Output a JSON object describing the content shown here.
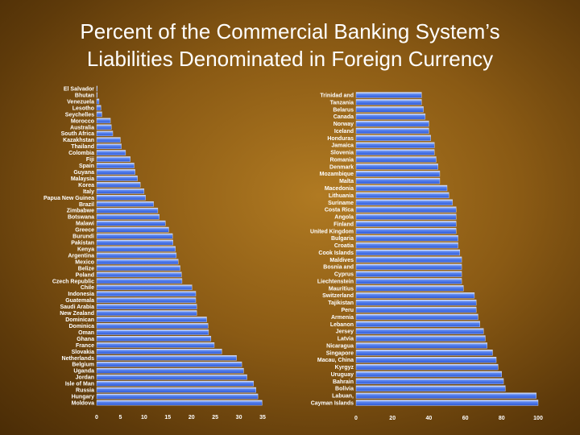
{
  "slide": {
    "title_line1": "Percent of the Commercial Banking System’s",
    "title_line2": "Liabilities Denominated in Foreign Currency"
  },
  "colors": {
    "bar_fill": "#3f6ee8",
    "bar_edge": "#d9e4ff",
    "text": "#ffffff"
  },
  "chart_data": [
    {
      "type": "bar",
      "orientation": "horizontal",
      "title": "",
      "xlabel": "",
      "ylabel": "",
      "xlim": [
        0,
        35
      ],
      "xticks": [
        0,
        5,
        10,
        15,
        20,
        25,
        30,
        35
      ],
      "grid": false,
      "categories": [
        "El Salvador",
        "Bhutan",
        "Venezuela",
        "Lesotho",
        "Seychelles",
        "Morocco",
        "Australia",
        "South Africa",
        "Kazakhstan",
        "Thailand",
        "Colombia",
        "Fiji",
        "Spain",
        "Guyana",
        "Malaysia",
        "Korea",
        "Italy",
        "Papua New Guinea",
        "Brazil",
        "Zimbabwe",
        "Botswana",
        "Malawi",
        "Greece",
        "Burundi",
        "Pakistan",
        "Kenya",
        "Argentina",
        "Mexico",
        "Belize",
        "Poland",
        "Czech Republic",
        "Chile",
        "Indonesia",
        "Guatemala",
        "Saudi Arabia",
        "New Zealand",
        "Dominican",
        "Dominica",
        "Oman",
        "Ghana",
        "France",
        "Slovakia",
        "Netherlands",
        "Belgium",
        "Uganda",
        "Jordan",
        "Isle of Man",
        "Russia",
        "Hungary",
        "Moldova"
      ],
      "values": [
        0,
        0,
        0.5,
        0.9,
        1.1,
        2.9,
        3.1,
        3.4,
        5.0,
        5.2,
        6.1,
        7.1,
        7.9,
        8.1,
        8.6,
        9.2,
        10.0,
        10.3,
        12.0,
        12.9,
        13.2,
        14.5,
        15.2,
        16.0,
        16.1,
        16.6,
        16.8,
        17.2,
        17.6,
        17.9,
        18.0,
        20.1,
        20.9,
        20.9,
        21.1,
        21.1,
        23.2,
        23.5,
        23.6,
        24.1,
        24.8,
        26.4,
        29.5,
        30.6,
        31.0,
        31.7,
        33.1,
        33.6,
        34.0,
        34.9
      ]
    },
    {
      "type": "bar",
      "orientation": "horizontal",
      "title": "",
      "xlabel": "",
      "ylabel": "",
      "xlim": [
        0,
        100
      ],
      "xticks": [
        0,
        20,
        40,
        60,
        80,
        100
      ],
      "grid": false,
      "categories": [
        "Trinidad and",
        "Tanzania",
        "Belarus",
        "Canada",
        "Norway",
        "Iceland",
        "Honduras",
        "Jamaica",
        "Slovenia",
        "Romania",
        "Denmark",
        "Mozambique",
        "Malta",
        "Macedonia",
        "Lithuania",
        "Suriname",
        "Costa Rica",
        "Angola",
        "Finland",
        "United Kingdom",
        "Bulgaria",
        "Croatia",
        "Cook Islands",
        "Maldives",
        "Bosnia and",
        "Cyprus",
        "Liechtenstein",
        "Mauritius",
        "Switzerland",
        "Tajikistan",
        "Peru",
        "Armenia",
        "Lebanon",
        "Jersey",
        "Latvia",
        "Nicaragua",
        "Singapore",
        "Macau, China",
        "Kyrgyz",
        "Uruguay",
        "Bahrain",
        "Bolivia",
        "Labuan,",
        "Cayman Islands"
      ],
      "values": [
        36,
        36,
        37,
        38,
        40,
        40,
        41,
        43,
        43,
        44,
        45,
        46,
        46,
        50,
        51,
        53,
        55,
        55,
        55,
        55,
        56,
        56,
        57,
        58,
        58,
        58,
        58,
        59,
        65,
        66,
        66,
        67,
        68,
        70,
        71,
        72,
        75,
        77,
        78,
        80,
        81,
        82,
        99,
        100
      ]
    }
  ]
}
